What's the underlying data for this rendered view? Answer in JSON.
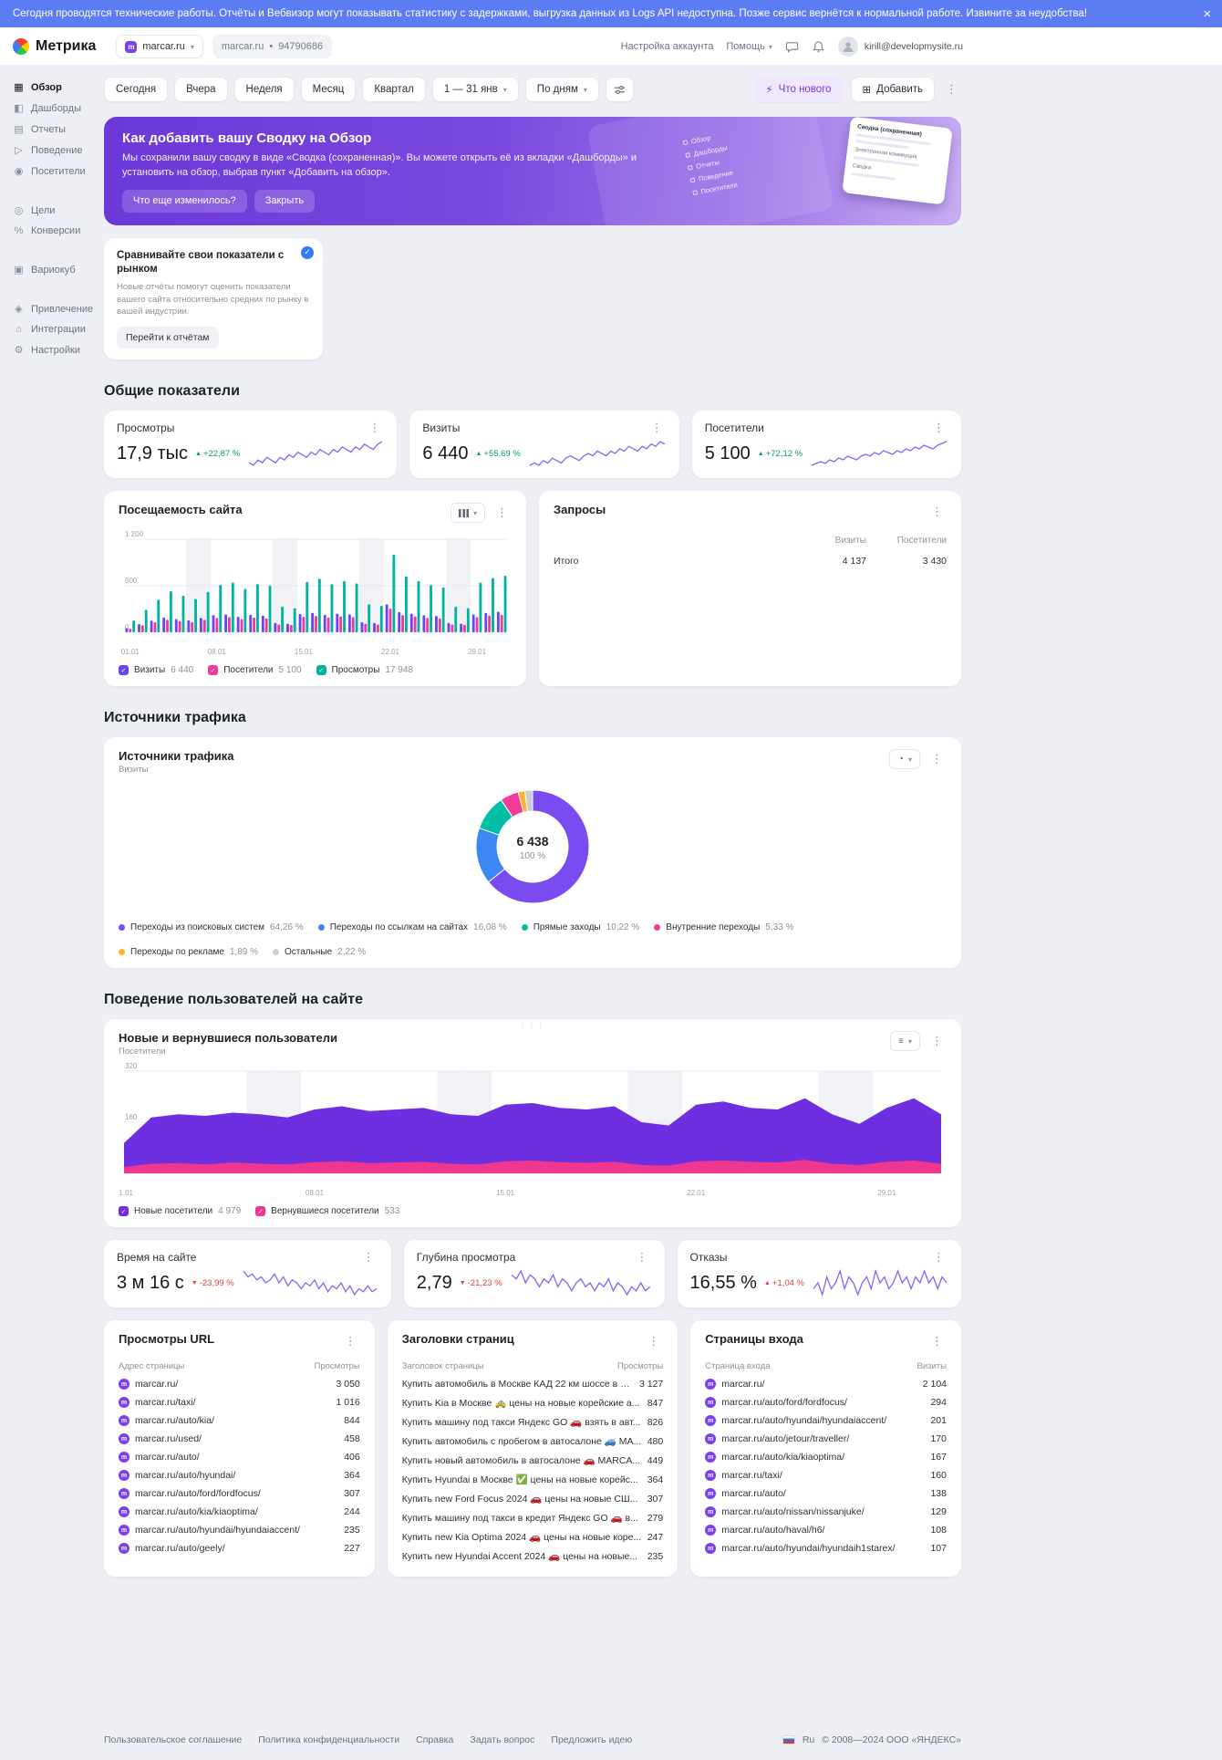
{
  "banner": {
    "text": "Сегодня проводятся технические работы. Отчёты и Вебвизор могут показывать статистику с задержками, выгрузка данных из Logs API недоступна. Позже сервис вернётся к нормальной работе. Извините за неудобства!"
  },
  "header": {
    "app_name": "Метрика",
    "counter_name": "marcar.ru",
    "counter_breadcrumb": "marcar.ru",
    "counter_id": "94790686",
    "account_settings": "Настройка аккаунта",
    "help": "Помощь",
    "user_email": "kirill@developmysite.ru"
  },
  "sidebar": {
    "groups": [
      {
        "items": [
          {
            "key": "overview",
            "label": "Обзор",
            "icon": "overview-icon",
            "glyph": "▦",
            "active": true
          },
          {
            "key": "dashboards",
            "label": "Дашборды",
            "icon": "dashboards-icon",
            "glyph": "◧",
            "active": false
          },
          {
            "key": "reports",
            "label": "Отчеты",
            "icon": "reports-icon",
            "glyph": "▤",
            "active": false
          },
          {
            "key": "behavior",
            "label": "Поведение",
            "icon": "behavior-icon",
            "glyph": "▷",
            "active": false
          },
          {
            "key": "visitors",
            "label": "Посетители",
            "icon": "visitors-icon",
            "glyph": "◉",
            "active": false
          }
        ]
      },
      {
        "items": [
          {
            "key": "goals",
            "label": "Цели",
            "icon": "goals-icon",
            "glyph": "◎",
            "active": false
          },
          {
            "key": "conversions",
            "label": "Конверсии",
            "icon": "conversions-icon",
            "glyph": "%",
            "active": false
          }
        ]
      },
      {
        "items": [
          {
            "key": "variocube",
            "label": "Вариокуб",
            "icon": "variocube-icon",
            "glyph": "▣",
            "active": false
          }
        ]
      },
      {
        "items": [
          {
            "key": "acquisition",
            "label": "Привлечение",
            "icon": "acquisition-icon",
            "glyph": "◈",
            "active": false
          },
          {
            "key": "integrations",
            "label": "Интеграции",
            "icon": "integrations-icon",
            "glyph": "⌂",
            "active": false
          },
          {
            "key": "settings",
            "label": "Настройки",
            "icon": "settings-icon",
            "glyph": "⚙",
            "active": false
          }
        ]
      }
    ]
  },
  "toolbar": {
    "periods": [
      {
        "key": "today",
        "label": "Сегодня"
      },
      {
        "key": "yesterday",
        "label": "Вчера"
      },
      {
        "key": "week",
        "label": "Неделя"
      },
      {
        "key": "month",
        "label": "Месяц"
      },
      {
        "key": "quarter",
        "label": "Квартал"
      }
    ],
    "date_range": "1 — 31 янв",
    "grouping": "По дням",
    "whats_new": "Что нового",
    "add": "Добавить"
  },
  "promo": {
    "title": "Как добавить вашу Сводку на Обзор",
    "text": "Мы сохранили вашу сводку в виде «Сводка (сохраненная)». Вы можете открыть её из вкладки «Дашборды» и установить на обзор, выбрав пункт «Добавить на обзор».",
    "more_button": "Что еще изменилось?",
    "close_button": "Закрыть",
    "illustration_menu": [
      "Обзор",
      "Дашборды",
      "Отчеты",
      "Поведение",
      "Посетители"
    ],
    "illustration_card_title": "Сводка (сохраненная)",
    "illustration_label_1": "Электронная коммерция",
    "illustration_label_2": "Сводка"
  },
  "market_card": {
    "title": "Сравнивайте свои показатели с рынком",
    "text": "Новые отчёты помогут оценить показатели вашего сайта относительно средних по рынку в вашей индустрии.",
    "button": "Перейти к отчётам"
  },
  "section_titles": {
    "general": "Общие показатели",
    "sources": "Источники трафика",
    "behavior": "Поведение пользователей на сайте"
  },
  "kpis_top": [
    {
      "key": "pageviews",
      "title": "Просмотры",
      "value": "17,9 тыс",
      "delta": "+22,87 %",
      "direction": "up",
      "trend_color": "#0ba05c",
      "spark_color": "#8a63f5",
      "spark": [
        5,
        4,
        6,
        5,
        7,
        6,
        5,
        7,
        6,
        8,
        7,
        9,
        8,
        7,
        9,
        8,
        10,
        9,
        8,
        10,
        9,
        11,
        10,
        9,
        11,
        10,
        12,
        11,
        10,
        12,
        13
      ]
    },
    {
      "key": "visits",
      "title": "Визиты",
      "value": "6 440",
      "delta": "+55,69 %",
      "direction": "up",
      "trend_color": "#0ba05c",
      "spark_color": "#8a63f5",
      "spark": [
        4,
        5,
        4,
        6,
        5,
        7,
        6,
        5,
        7,
        8,
        7,
        6,
        8,
        9,
        8,
        10,
        9,
        8,
        10,
        9,
        11,
        10,
        12,
        11,
        10,
        12,
        11,
        13,
        12,
        14,
        13
      ]
    },
    {
      "key": "users",
      "title": "Посетители",
      "value": "5 100",
      "delta": "+72,12 %",
      "direction": "up",
      "trend_color": "#0ba05c",
      "spark_color": "#8a63f5",
      "spark": [
        3,
        4,
        5,
        4,
        6,
        5,
        7,
        6,
        8,
        7,
        6,
        8,
        9,
        8,
        10,
        9,
        11,
        10,
        9,
        11,
        10,
        12,
        11,
        13,
        12,
        14,
        13,
        12,
        14,
        15,
        16
      ]
    }
  ],
  "kpis_bottom": [
    {
      "key": "time-on-site",
      "title": "Время на сайте",
      "value": "3 м 16 с",
      "delta": "-23,99 %",
      "direction": "down",
      "trend_color": "#e03e3e",
      "spark_color": "#8a63f5",
      "spark": [
        12,
        10,
        11,
        9,
        10,
        8,
        9,
        11,
        8,
        10,
        7,
        9,
        8,
        6,
        8,
        7,
        9,
        6,
        8,
        5,
        7,
        6,
        8,
        5,
        7,
        4,
        6,
        5,
        7,
        5,
        6
      ]
    },
    {
      "key": "depth",
      "title": "Глубина просмотра",
      "value": "2,79",
      "delta": "-21,23 %",
      "direction": "down",
      "trend_color": "#e03e3e",
      "spark_color": "#8a63f5",
      "spark": [
        10,
        9,
        11,
        8,
        10,
        9,
        7,
        9,
        8,
        10,
        7,
        9,
        8,
        6,
        8,
        9,
        7,
        8,
        6,
        8,
        7,
        9,
        6,
        8,
        7,
        5,
        7,
        6,
        8,
        6,
        7
      ]
    },
    {
      "key": "bounce",
      "title": "Отказы",
      "value": "16,55 %",
      "delta": "+1,04 %",
      "direction": "up",
      "trend_color": "#e03e3e",
      "spark_color": "#8a63f5",
      "spark": [
        6,
        7,
        5,
        8,
        6,
        7,
        9,
        6,
        8,
        7,
        5,
        7,
        8,
        6,
        9,
        7,
        8,
        6,
        7,
        9,
        7,
        8,
        6,
        8,
        7,
        9,
        7,
        8,
        6,
        8,
        7
      ]
    }
  ],
  "queries_card": {
    "title": "Запросы",
    "columns": [
      "Визиты",
      "Посетители"
    ],
    "rows": [
      {
        "label": "Итого",
        "values": [
          "4 137",
          "3 430"
        ]
      }
    ]
  },
  "chart_data": [
    {
      "id": "site-traffic",
      "type": "bar",
      "title": "Посещаемость сайта",
      "x_ticks": [
        "01.01",
        "08.01",
        "15.01",
        "22.01",
        "29.01"
      ],
      "x_tick_days": [
        0,
        7,
        14,
        21,
        28
      ],
      "weekend_days": [
        5,
        6,
        12,
        13,
        19,
        20,
        26,
        27
      ],
      "ylim": [
        0,
        1200
      ],
      "y_ticks": [
        "0",
        "600",
        "1 200"
      ],
      "y_tick_values": [
        0,
        600,
        1200
      ],
      "series": [
        {
          "name": "Визиты",
          "total": "6 440",
          "color": "#6b46f0",
          "values": [
            55,
            105,
            150,
            190,
            170,
            155,
            185,
            220,
            230,
            200,
            225,
            215,
            120,
            110,
            235,
            250,
            225,
            240,
            230,
            130,
            120,
            360,
            260,
            240,
            220,
            210,
            120,
            110,
            230,
            250,
            265
          ]
        },
        {
          "name": "Посетители",
          "total": "5 100",
          "color": "#ee3a9c",
          "values": [
            45,
            90,
            130,
            160,
            145,
            130,
            160,
            185,
            195,
            170,
            190,
            180,
            100,
            95,
            200,
            210,
            190,
            205,
            195,
            110,
            100,
            305,
            220,
            205,
            185,
            180,
            100,
            95,
            195,
            215,
            225
          ]
        },
        {
          "name": "Просмотры",
          "total": "17 948",
          "color": "#00b3a0",
          "values": [
            150,
            290,
            420,
            530,
            470,
            430,
            520,
            610,
            640,
            560,
            620,
            600,
            330,
            310,
            650,
            690,
            620,
            660,
            630,
            360,
            340,
            1000,
            720,
            660,
            610,
            580,
            330,
            310,
            640,
            700,
            730
          ]
        }
      ]
    },
    {
      "id": "traffic-sources",
      "type": "donut",
      "title": "Источники трафика",
      "subtitle": "Визиты",
      "center_value": "6 438",
      "center_sub": "100 %",
      "slices": [
        {
          "label": "Переходы из поисковых систем",
          "pct": 64.26,
          "display": "64,26 %",
          "color": "#7b4bf2"
        },
        {
          "label": "Переходы по ссылкам на сайтах",
          "pct": 16.08,
          "display": "16,08 %",
          "color": "#3d87f5"
        },
        {
          "label": "Прямые заходы",
          "pct": 10.22,
          "display": "10,22 %",
          "color": "#00bfa5"
        },
        {
          "label": "Внутренние переходы",
          "pct": 5.33,
          "display": "5,33 %",
          "color": "#f23a97"
        },
        {
          "label": "Переходы по рекламе",
          "pct": 1.89,
          "display": "1,89 %",
          "color": "#ffb02e"
        },
        {
          "label": "Остальные",
          "pct": 2.22,
          "display": "2,22 %",
          "color": "#c9ced6"
        }
      ]
    },
    {
      "id": "new-returning-users",
      "type": "area",
      "title": "Новые и вернувшиеся пользователи",
      "subtitle": "Посетители",
      "x_ticks": [
        "01.01",
        "08.01",
        "15.01",
        "22.01",
        "29.01"
      ],
      "x_tick_days": [
        0,
        7,
        14,
        21,
        28
      ],
      "weekend_days": [
        5,
        6,
        12,
        13,
        19,
        20,
        26,
        27
      ],
      "ylim": [
        0,
        320
      ],
      "y_ticks": [
        "0",
        "160",
        "320"
      ],
      "y_tick_values": [
        0,
        160,
        320
      ],
      "series": [
        {
          "name": "Новые посетители",
          "total": "4 979",
          "color": "#6d2fe0",
          "values": [
            95,
            175,
            185,
            180,
            190,
            185,
            175,
            200,
            210,
            195,
            200,
            205,
            185,
            180,
            215,
            220,
            205,
            200,
            210,
            160,
            150,
            215,
            225,
            205,
            200,
            235,
            185,
            155,
            205,
            235,
            185
          ]
        },
        {
          "name": "Вернувшиеся посетители",
          "total": "533",
          "color": "#f0368f",
          "values": [
            20,
            30,
            32,
            28,
            34,
            30,
            28,
            35,
            38,
            32,
            34,
            36,
            30,
            28,
            38,
            40,
            35,
            33,
            36,
            26,
            24,
            38,
            40,
            36,
            34,
            42,
            30,
            26,
            36,
            40,
            30
          ]
        }
      ]
    }
  ],
  "lists": [
    {
      "key": "url-views",
      "title": "Просмотры URL",
      "col_label": "Адрес страницы",
      "col_value": "Просмотры",
      "favicon": true,
      "rows": [
        {
          "label": "marcar.ru/",
          "value": "3 050"
        },
        {
          "label": "marcar.ru/taxi/",
          "value": "1 016"
        },
        {
          "label": "marcar.ru/auto/kia/",
          "value": "844"
        },
        {
          "label": "marcar.ru/used/",
          "value": "458"
        },
        {
          "label": "marcar.ru/auto/",
          "value": "406"
        },
        {
          "label": "marcar.ru/auto/hyundai/",
          "value": "364"
        },
        {
          "label": "marcar.ru/auto/ford/fordfocus/",
          "value": "307"
        },
        {
          "label": "marcar.ru/auto/kia/kiaoptima/",
          "value": "244"
        },
        {
          "label": "marcar.ru/auto/hyundai/hyundaiaccent/",
          "value": "235"
        },
        {
          "label": "marcar.ru/auto/geely/",
          "value": "227"
        }
      ]
    },
    {
      "key": "page-titles",
      "title": "Заголовки страниц",
      "col_label": "Заголовок страницы",
      "col_value": "Просмотры",
      "favicon": false,
      "rows": [
        {
          "label": "Купить автомобиль в Москве КАД 22 км шоссе в авт...",
          "value": "3 127"
        },
        {
          "label": "Купить Kia в Москве 🚕 цены на новые корейские а...",
          "value": "847"
        },
        {
          "label": "Купить машину под такси Яндекс GO 🚗 взять в авт...",
          "value": "826"
        },
        {
          "label": "Купить автомобиль с пробегом в автосалоне 🚙 MA...",
          "value": "480"
        },
        {
          "label": "Купить новый автомобиль в автосалоне 🚗 MARCA...",
          "value": "449"
        },
        {
          "label": "Купить Hyundai в Москве ✅ цены на новые корейс...",
          "value": "364"
        },
        {
          "label": "Купить new Ford Focus 2024 🚗 цены на новые СШ...",
          "value": "307"
        },
        {
          "label": "Купить машину под такси в кредит Яндекс GO 🚗 в...",
          "value": "279"
        },
        {
          "label": "Купить new Kia Optima 2024 🚗 цены на новые коре...",
          "value": "247"
        },
        {
          "label": "Купить new Hyundai Accent 2024 🚗 цены на новые...",
          "value": "235"
        }
      ]
    },
    {
      "key": "entry-pages",
      "title": "Страницы входа",
      "col_label": "Страница входа",
      "col_value": "Визиты",
      "favicon": true,
      "rows": [
        {
          "label": "marcar.ru/",
          "value": "2 104"
        },
        {
          "label": "marcar.ru/auto/ford/fordfocus/",
          "value": "294"
        },
        {
          "label": "marcar.ru/auto/hyundai/hyundaiaccent/",
          "value": "201"
        },
        {
          "label": "marcar.ru/auto/jetour/traveller/",
          "value": "170"
        },
        {
          "label": "marcar.ru/auto/kia/kiaoptima/",
          "value": "167"
        },
        {
          "label": "marcar.ru/taxi/",
          "value": "160"
        },
        {
          "label": "marcar.ru/auto/",
          "value": "138"
        },
        {
          "label": "marcar.ru/auto/nissan/nissanjuke/",
          "value": "129"
        },
        {
          "label": "marcar.ru/auto/haval/h6/",
          "value": "108"
        },
        {
          "label": "marcar.ru/auto/hyundai/hyundaih1starex/",
          "value": "107"
        }
      ]
    }
  ],
  "footer": {
    "links": [
      "Пользовательское соглашение",
      "Политика конфиденциальности",
      "Справка",
      "Задать вопрос",
      "Предложить идею"
    ],
    "lang": "Ru",
    "copyright": "© 2008—2024 ООО «ЯНДЕКС»"
  }
}
